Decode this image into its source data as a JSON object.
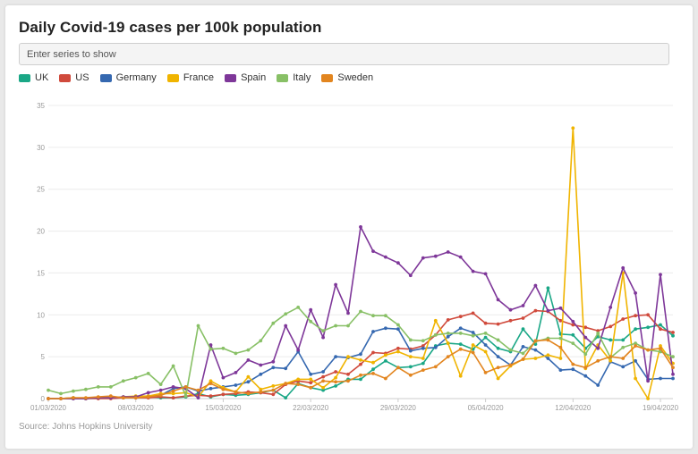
{
  "title": "Daily Covid-19 cases per 100k population",
  "search": {
    "placeholder": "Enter series to show"
  },
  "source": "Source: Johns Hopkins University",
  "legend": [
    {
      "label": "UK",
      "color": "#1aa786"
    },
    {
      "label": "US",
      "color": "#d04a3c"
    },
    {
      "label": "Germany",
      "color": "#3568b0"
    },
    {
      "label": "France",
      "color": "#f0b400"
    },
    {
      "label": "Spain",
      "color": "#7e3799"
    },
    {
      "label": "Italy",
      "color": "#88c066"
    },
    {
      "label": "Sweden",
      "color": "#e2851f"
    }
  ],
  "chart_data": {
    "type": "line",
    "title": "Daily Covid-19 cases per 100k population",
    "xlabel": "",
    "ylabel": "",
    "ylim": [
      0,
      35
    ],
    "yticks": [
      0,
      5,
      10,
      15,
      20,
      25,
      30,
      35
    ],
    "x_start": "01/03/2020",
    "xticks": [
      "01/03/2020",
      "08/03/2020",
      "15/03/2020",
      "22/03/2020",
      "29/03/2020",
      "05/04/2020",
      "12/04/2020",
      "19/04/2020"
    ],
    "x": [
      "01/03/2020",
      "02/03/2020",
      "03/03/2020",
      "04/03/2020",
      "05/03/2020",
      "06/03/2020",
      "07/03/2020",
      "08/03/2020",
      "09/03/2020",
      "10/03/2020",
      "11/03/2020",
      "12/03/2020",
      "13/03/2020",
      "14/03/2020",
      "15/03/2020",
      "16/03/2020",
      "17/03/2020",
      "18/03/2020",
      "19/03/2020",
      "20/03/2020",
      "21/03/2020",
      "22/03/2020",
      "23/03/2020",
      "24/03/2020",
      "25/03/2020",
      "26/03/2020",
      "27/03/2020",
      "28/03/2020",
      "29/03/2020",
      "30/03/2020",
      "31/03/2020",
      "01/04/2020",
      "02/04/2020",
      "03/04/2020",
      "04/04/2020",
      "05/04/2020",
      "06/04/2020",
      "07/04/2020",
      "08/04/2020",
      "09/04/2020",
      "10/04/2020",
      "11/04/2020",
      "12/04/2020",
      "13/04/2020",
      "14/04/2020",
      "15/04/2020",
      "16/04/2020",
      "17/04/2020",
      "18/04/2020",
      "19/04/2020",
      "20/04/2020"
    ],
    "grid": true,
    "legend_position": "top-left",
    "series": [
      {
        "name": "UK",
        "color": "#1aa786",
        "values": [
          0.0,
          0.0,
          0.1,
          0.0,
          0.1,
          0.1,
          0.1,
          0.2,
          0.2,
          0.1,
          0.1,
          0.2,
          0.6,
          0.2,
          0.5,
          0.4,
          0.5,
          0.7,
          1.0,
          0.1,
          1.8,
          1.3,
          1.0,
          1.5,
          2.3,
          2.3,
          3.5,
          4.5,
          3.7,
          3.8,
          4.2,
          6.3,
          6.6,
          6.5,
          5.9,
          7.3,
          6.0,
          5.6,
          8.3,
          6.5,
          13.2,
          7.7,
          7.6,
          6.0,
          7.4,
          7.0,
          7.0,
          8.3,
          8.5,
          8.8,
          7.5
        ]
      },
      {
        "name": "US",
        "color": "#d04a3c",
        "values": [
          0.0,
          0.0,
          0.0,
          0.0,
          0.0,
          0.0,
          0.1,
          0.1,
          0.1,
          0.2,
          0.1,
          0.3,
          0.4,
          0.3,
          0.5,
          0.6,
          0.8,
          0.7,
          0.5,
          1.7,
          2.1,
          1.9,
          2.6,
          3.2,
          2.9,
          4.1,
          5.5,
          5.4,
          6.0,
          5.9,
          6.3,
          7.6,
          9.4,
          9.8,
          10.2,
          9.0,
          8.9,
          9.3,
          9.6,
          10.5,
          10.4,
          9.3,
          8.8,
          8.5,
          8.1,
          8.6,
          9.5,
          9.9,
          10.0,
          8.3,
          7.9
        ]
      },
      {
        "name": "Germany",
        "color": "#3568b0",
        "values": [
          0.0,
          0.0,
          0.0,
          0.0,
          0.1,
          0.1,
          0.2,
          0.2,
          0.3,
          0.4,
          1.2,
          1.4,
          0.9,
          1.2,
          1.4,
          1.6,
          2.0,
          2.9,
          3.7,
          3.6,
          5.6,
          2.9,
          3.2,
          5.0,
          4.9,
          5.3,
          8.0,
          8.4,
          8.3,
          5.7,
          6.0,
          6.1,
          7.4,
          8.4,
          7.9,
          6.4,
          5.0,
          4.0,
          6.2,
          5.8,
          4.8,
          3.4,
          3.5,
          2.7,
          1.6,
          4.4,
          3.8,
          4.5,
          2.3,
          2.4,
          2.4
        ]
      },
      {
        "name": "France",
        "color": "#f0b400",
        "values": [
          0.0,
          0.0,
          0.1,
          0.0,
          0.1,
          0.1,
          0.2,
          0.3,
          0.3,
          0.6,
          0.6,
          0.7,
          0.2,
          2.1,
          1.3,
          0.8,
          2.6,
          1.1,
          1.5,
          1.8,
          2.3,
          2.3,
          1.3,
          2.5,
          5.0,
          4.6,
          4.3,
          5.2,
          5.6,
          5.0,
          4.8,
          9.3,
          6.6,
          2.7,
          6.4,
          5.6,
          2.4,
          3.9,
          4.7,
          4.8,
          5.2,
          4.8,
          32.3,
          3.6,
          6.4,
          4.5,
          15.0,
          2.4,
          0.0,
          6.3,
          4.2
        ]
      },
      {
        "name": "Spain",
        "color": "#7e3799",
        "values": [
          0.0,
          0.0,
          0.0,
          0.0,
          0.1,
          0.1,
          0.2,
          0.2,
          0.7,
          1.0,
          1.4,
          1.2,
          0.1,
          6.4,
          2.5,
          3.1,
          4.6,
          4.0,
          4.4,
          8.7,
          5.8,
          10.6,
          7.3,
          13.6,
          10.2,
          20.5,
          17.6,
          16.9,
          16.2,
          14.7,
          16.8,
          17.0,
          17.5,
          16.9,
          15.2,
          14.9,
          11.8,
          10.6,
          11.1,
          13.5,
          10.5,
          10.8,
          9.2,
          7.3,
          6.0,
          10.9,
          15.6,
          12.6,
          2.1,
          14.8,
          2.9
        ]
      },
      {
        "name": "Italy",
        "color": "#88c066",
        "values": [
          1.0,
          0.6,
          0.9,
          1.1,
          1.4,
          1.4,
          2.1,
          2.5,
          3.0,
          1.7,
          3.9,
          0.3,
          8.7,
          5.9,
          6.0,
          5.4,
          5.8,
          6.9,
          9.0,
          10.1,
          10.9,
          9.2,
          8.1,
          8.7,
          8.7,
          10.4,
          9.9,
          9.9,
          8.8,
          7.0,
          6.9,
          7.6,
          7.8,
          7.8,
          7.5,
          7.8,
          7.0,
          5.8,
          5.4,
          6.8,
          7.2,
          7.2,
          6.6,
          5.3,
          7.8,
          4.9,
          6.1,
          6.6,
          5.8,
          5.6,
          5.0
        ]
      },
      {
        "name": "Sweden",
        "color": "#e2851f",
        "values": [
          0.0,
          0.0,
          0.1,
          0.1,
          0.2,
          0.3,
          0.1,
          0.1,
          0.2,
          0.4,
          0.9,
          1.4,
          1.0,
          1.8,
          1.1,
          0.8,
          0.6,
          0.8,
          1.0,
          1.8,
          1.7,
          1.3,
          2.1,
          2.0,
          2.1,
          2.8,
          3.0,
          2.4,
          3.7,
          2.8,
          3.4,
          3.8,
          5.0,
          5.9,
          5.5,
          3.1,
          3.7,
          4.0,
          4.7,
          6.9,
          7.0,
          6.1,
          4.1,
          3.7,
          4.5,
          5.0,
          4.8,
          6.3,
          5.8,
          6.0,
          3.7
        ]
      }
    ]
  }
}
